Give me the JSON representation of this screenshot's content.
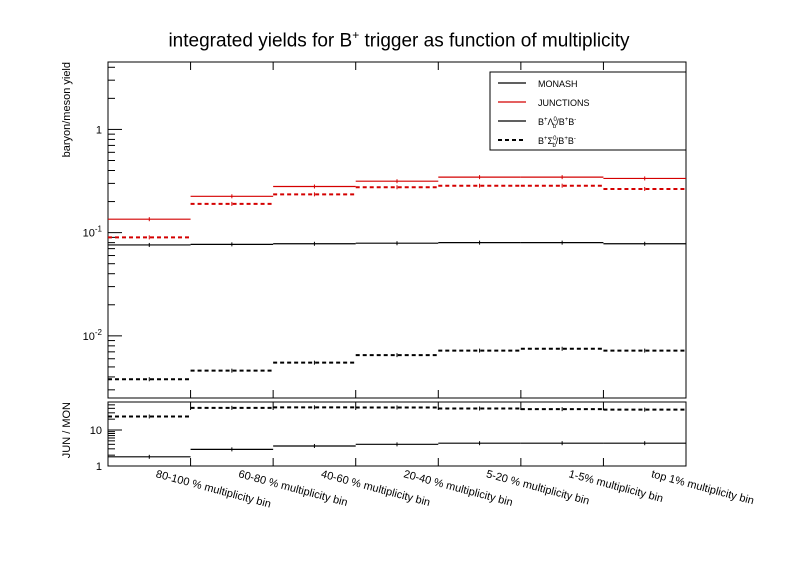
{
  "chart_data": [
    {
      "type": "step",
      "title_prefix": "integrated yields for B",
      "title_superscript": "+",
      "title_suffix": " trigger as function of multiplicity",
      "ylabel": "baryon/meson yield",
      "yscale": "log",
      "ylim": [
        0.0025,
        4.5
      ],
      "ytick_labels": [
        {
          "value": 1,
          "label": "1"
        },
        {
          "value": 0.1,
          "label": "10",
          "exp": "-1"
        },
        {
          "value": 0.01,
          "label": "10",
          "exp": "-2"
        }
      ],
      "categories": [
        "80-100 % multiplicity bin",
        "60-80 % multiplicity bin",
        "40-60 % multiplicity bin",
        "20-40 % multiplicity bin",
        "5-20 % multiplicity bin",
        "1-5% multiplicity bin",
        "top 1% multiplicity bin"
      ],
      "series": [
        {
          "name": "JUNCTIONS",
          "generator": "JUNCTIONS",
          "ratio": "Lambda",
          "color": "#d40000",
          "style": "solid",
          "values": [
            0.135,
            0.225,
            0.28,
            0.315,
            0.345,
            0.345,
            0.335
          ]
        },
        {
          "name": "",
          "generator": "JUNCTIONS",
          "ratio": "Sigma",
          "color": "#d40000",
          "style": "dashed",
          "values": [
            0.09,
            0.19,
            0.235,
            0.275,
            0.285,
            0.285,
            0.265
          ]
        },
        {
          "name": "",
          "generator": "MONASH",
          "ratio": "Lambda",
          "color": "#000000",
          "style": "solid",
          "values": [
            0.076,
            0.077,
            0.078,
            0.079,
            0.08,
            0.08,
            0.078
          ]
        },
        {
          "name": "",
          "generator": "MONASH",
          "ratio": "Sigma",
          "color": "#000000",
          "style": "dashed",
          "values": [
            0.0038,
            0.0046,
            0.0055,
            0.0065,
            0.0072,
            0.0075,
            0.0072
          ]
        }
      ],
      "legend": {
        "placement": "top-right",
        "entries": [
          {
            "label": "MONASH",
            "color": "#000000",
            "style": "solid"
          },
          {
            "label": "JUNCTIONS",
            "color": "#d40000",
            "style": "solid"
          },
          {
            "label_parts": [
              "B",
              "+",
              "Λ",
              "0",
              "b",
              "/B",
              "+",
              "B",
              "-"
            ],
            "color": "#000000",
            "style": "solid"
          },
          {
            "label_parts": [
              "B",
              "+",
              "Σ",
              "0",
              "b",
              "/B",
              "+",
              "B",
              "-"
            ],
            "color": "#000000",
            "style": "dashed"
          }
        ]
      }
    },
    {
      "type": "step",
      "ylabel": "JUN / MON",
      "yscale": "log",
      "ylim": [
        1,
        60
      ],
      "ytick_labels": [
        {
          "value": 1,
          "label": "1"
        },
        {
          "value": 10,
          "label": "10"
        }
      ],
      "series": [
        {
          "name": "",
          "ratio": "Lambda",
          "color": "#000000",
          "style": "solid",
          "values": [
            1.8,
            2.9,
            3.6,
            4.0,
            4.3,
            4.3,
            4.3
          ]
        },
        {
          "name": "",
          "ratio": "Sigma",
          "color": "#000000",
          "style": "dashed",
          "values": [
            23.7,
            41.3,
            42.7,
            42.3,
            39.6,
            38.0,
            36.8
          ]
        }
      ]
    }
  ]
}
